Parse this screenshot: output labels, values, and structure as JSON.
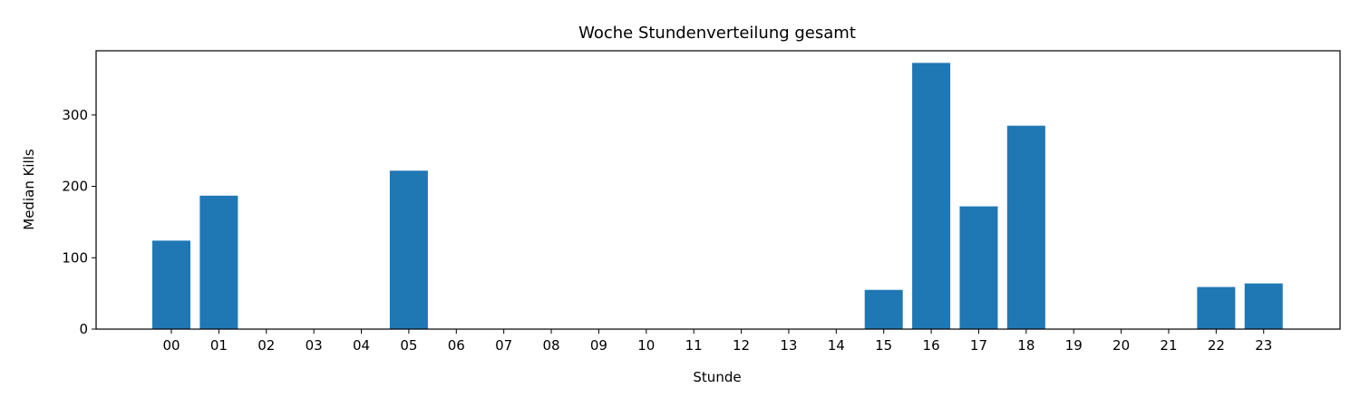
{
  "chart_data": {
    "type": "bar",
    "title": "Woche Stundenverteilung gesamt",
    "xlabel": "Stunde",
    "ylabel": "Median Kills",
    "categories": [
      "00",
      "01",
      "02",
      "03",
      "04",
      "05",
      "06",
      "07",
      "08",
      "09",
      "10",
      "11",
      "12",
      "13",
      "14",
      "15",
      "16",
      "17",
      "18",
      "19",
      "20",
      "21",
      "22",
      "23"
    ],
    "values": [
      124,
      187,
      0,
      0,
      0,
      222,
      0,
      0,
      0,
      0,
      0,
      0,
      0,
      0,
      0,
      55,
      373,
      172,
      285,
      0,
      0,
      0,
      59,
      64
    ],
    "ylim": [
      0,
      390
    ],
    "yticks": [
      0,
      100,
      200,
      300
    ],
    "bar_color": "#1f77b4",
    "grid": false,
    "legend": false
  }
}
